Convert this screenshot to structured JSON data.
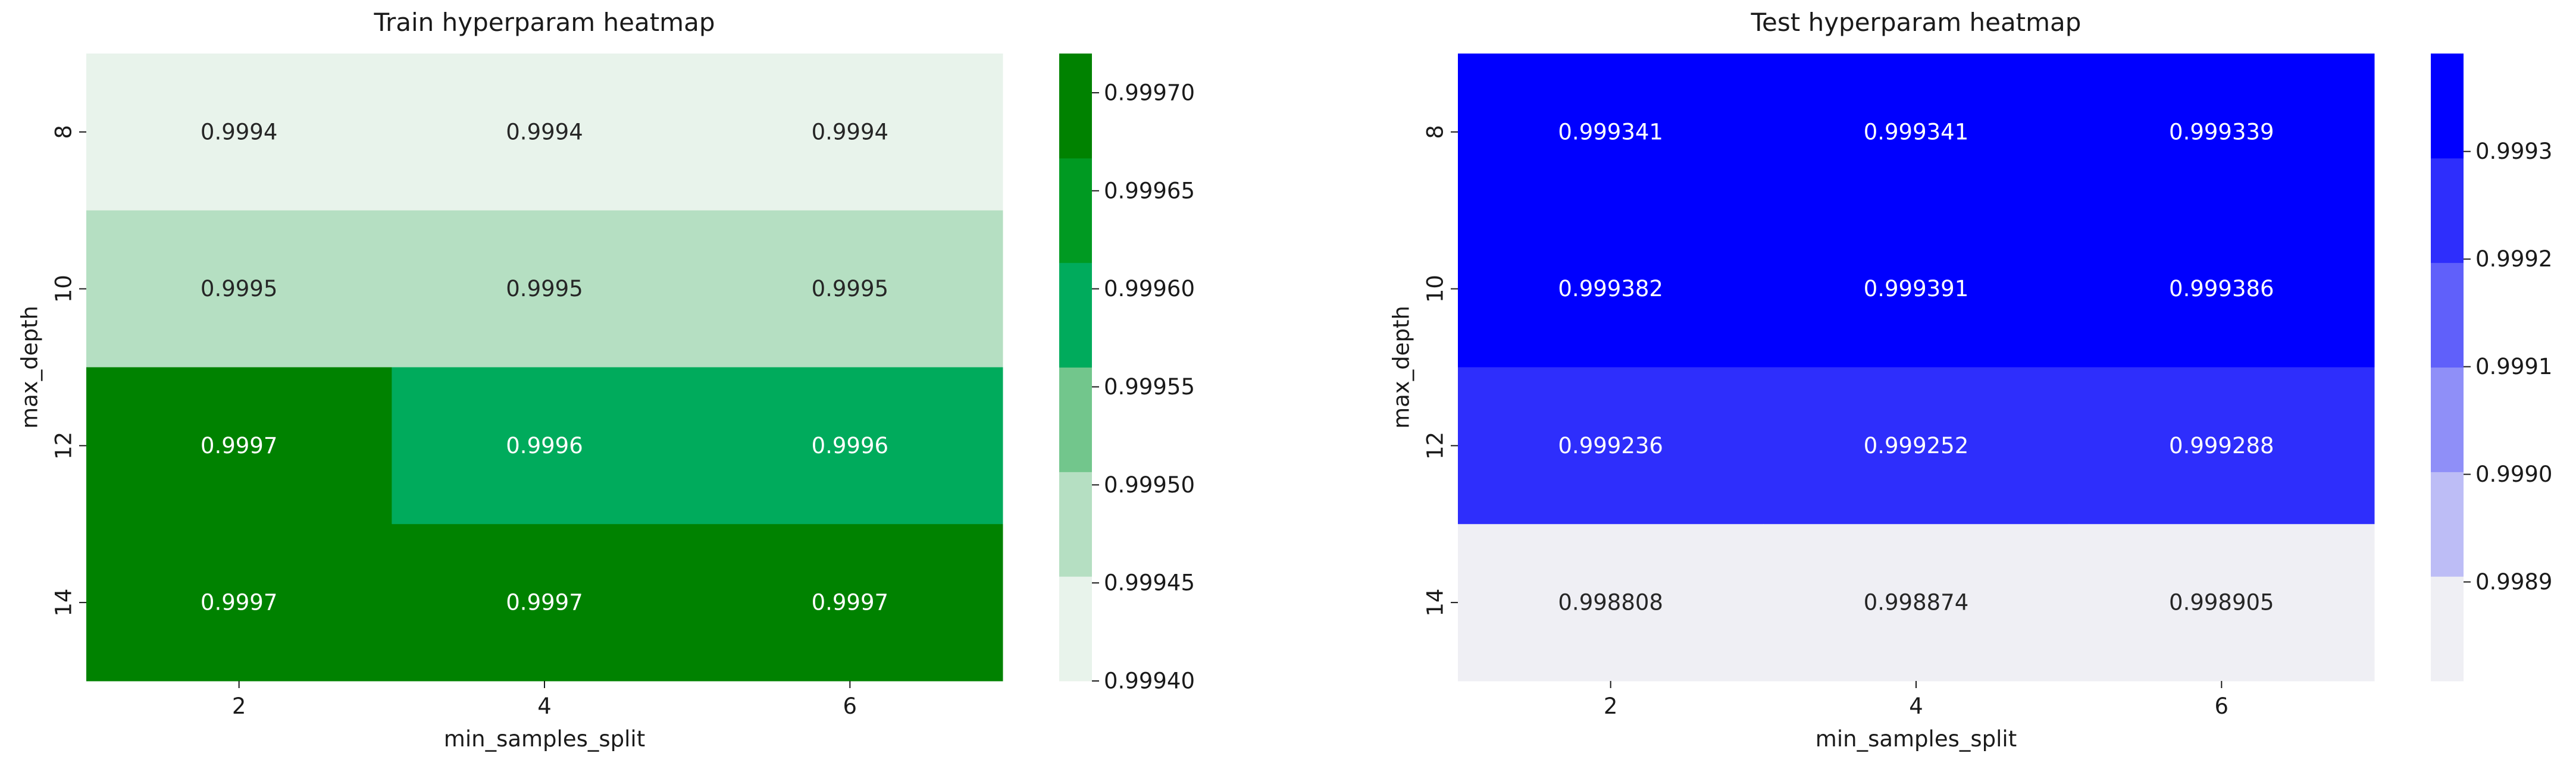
{
  "chart_data": [
    {
      "type": "heatmap",
      "title": "Train hyperparam heatmap",
      "xlabel": "min_samples_split",
      "ylabel": "max_depth",
      "x": [
        "2",
        "4",
        "6"
      ],
      "y": [
        "8",
        "10",
        "12",
        "14"
      ],
      "values": [
        [
          0.9994,
          0.9994,
          0.9994
        ],
        [
          0.9995,
          0.9995,
          0.9995
        ],
        [
          0.9997,
          0.9996,
          0.9996
        ],
        [
          0.9997,
          0.9997,
          0.9997
        ]
      ],
      "annotations": [
        [
          "0.9994",
          "0.9994",
          "0.9994"
        ],
        [
          "0.9995",
          "0.9995",
          "0.9995"
        ],
        [
          "0.9997",
          "0.9996",
          "0.9996"
        ],
        [
          "0.9997",
          "0.9997",
          "0.9997"
        ]
      ],
      "colorbar": {
        "range": [
          0.9994,
          0.99972
        ],
        "ticks": [
          "0.99940",
          "0.99945",
          "0.99950",
          "0.99955",
          "0.99960",
          "0.99965",
          "0.99970"
        ],
        "colors": [
          "#e8f3eb",
          "#b5dfc2",
          "#72c68c",
          "#00ab5c",
          "#009a22",
          "#008200"
        ]
      }
    },
    {
      "type": "heatmap",
      "title": "Test hyperparam heatmap",
      "xlabel": "min_samples_split",
      "ylabel": "max_depth",
      "x": [
        "2",
        "4",
        "6"
      ],
      "y": [
        "8",
        "10",
        "12",
        "14"
      ],
      "values": [
        [
          0.999341,
          0.999341,
          0.999339
        ],
        [
          0.999382,
          0.999391,
          0.999386
        ],
        [
          0.999236,
          0.999252,
          0.999288
        ],
        [
          0.998808,
          0.998874,
          0.998905
        ]
      ],
      "annotations": [
        [
          "0.999341",
          "0.999341",
          "0.999339"
        ],
        [
          "0.999382",
          "0.999391",
          "0.999386"
        ],
        [
          "0.999236",
          "0.999252",
          "0.999288"
        ],
        [
          "0.998808",
          "0.998874",
          "0.998905"
        ]
      ],
      "colorbar": {
        "range": [
          0.998808,
          0.999391
        ],
        "ticks": [
          "0.9989",
          "0.9990",
          "0.9991",
          "0.9992",
          "0.9993"
        ],
        "colors": [
          "#efeff4",
          "#bdbdf6",
          "#8f8ff8",
          "#6060fa",
          "#2e2efc",
          "#0000ff"
        ]
      }
    }
  ]
}
